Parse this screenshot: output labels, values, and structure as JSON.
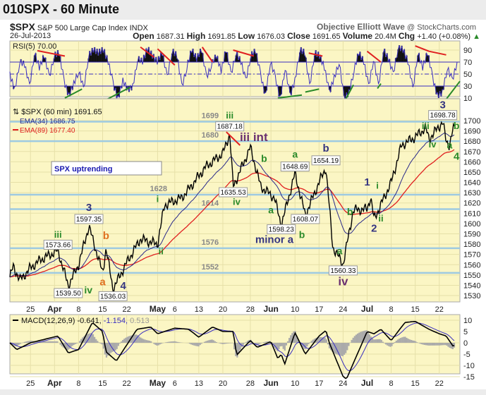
{
  "title": "010SPX - 60 Minute",
  "header": {
    "symbol": "$SPX",
    "name": "S&P 500 Large Cap Index",
    "exchange": "INDX",
    "date": "26-Jul-2013",
    "brand": "Objective Elliott Wave",
    "site": "@ StockCharts.com",
    "open_label": "Open",
    "open": "1687.31",
    "high_label": "High",
    "high": "1691.85",
    "low_label": "Low",
    "low": "1676.03",
    "close_label": "Close",
    "close": "1691.65",
    "volume_label": "Volume",
    "volume": "20.4M",
    "chg_label": "Chg",
    "chg": "+1.40 (+0.08%)",
    "chg_icon": "triangle-up"
  },
  "chart_data": [
    {
      "type": "line",
      "panel": "rsi",
      "legend": "RSI(5) 70.00",
      "ylim": [
        0,
        100
      ],
      "yticks": [
        10,
        30,
        50,
        70,
        90
      ],
      "levels": [
        30,
        50,
        70
      ],
      "color": "#3a2fc0",
      "values": [
        50,
        25,
        70,
        65,
        30,
        85,
        60,
        80,
        45,
        80,
        85,
        40,
        15,
        35,
        55,
        25,
        80,
        90,
        85,
        90,
        70,
        35,
        10,
        40,
        25,
        30,
        75,
        70,
        92,
        80,
        70,
        85,
        45,
        88,
        80,
        30,
        60,
        90,
        75,
        90,
        45,
        65,
        80,
        55,
        90,
        50,
        85,
        70,
        40,
        80,
        88,
        50,
        15,
        70,
        45,
        10,
        60,
        15,
        40,
        90,
        85,
        30,
        85,
        80,
        60,
        20,
        45,
        70,
        10,
        20,
        55,
        85,
        70,
        30,
        75,
        30,
        90,
        75,
        50,
        95,
        90,
        70,
        25,
        85,
        60,
        85,
        45,
        15,
        20,
        60,
        40,
        70
      ],
      "trendlines": [
        {
          "color": "#e02020",
          "from": [
            "2013-03-27",
            89
          ],
          "to": [
            "2013-04-04",
            80
          ]
        },
        {
          "color": "#2a8a2a",
          "from": [
            "2013-04-04",
            10
          ],
          "to": [
            "2013-04-09",
            25
          ]
        },
        {
          "color": "#2a8a2a",
          "from": [
            "2013-04-16",
            7
          ],
          "to": [
            "2013-04-23",
            28
          ]
        },
        {
          "color": "#e02020",
          "from": [
            "2013-04-26",
            95
          ],
          "to": [
            "2013-04-30",
            78
          ]
        },
        {
          "color": "#e02020",
          "from": [
            "2013-05-01",
            92
          ],
          "to": [
            "2013-05-06",
            65
          ]
        },
        {
          "color": "#e02020",
          "from": [
            "2013-05-14",
            95
          ],
          "to": [
            "2013-05-17",
            70
          ]
        },
        {
          "color": "#e02020",
          "from": [
            "2013-05-23",
            90
          ],
          "to": [
            "2013-05-29",
            80
          ]
        },
        {
          "color": "#2a8a2a",
          "from": [
            "2013-06-05",
            10
          ],
          "to": [
            "2013-06-12",
            15
          ]
        },
        {
          "color": "#2a8a2a",
          "from": [
            "2013-06-13",
            20
          ],
          "to": [
            "2013-06-17",
            25
          ]
        },
        {
          "color": "#e02020",
          "from": [
            "2013-06-14",
            85
          ],
          "to": [
            "2013-06-18",
            80
          ]
        },
        {
          "color": "#2a8a2a",
          "from": [
            "2013-06-24",
            0
          ],
          "to": [
            "2013-06-27",
            32
          ]
        },
        {
          "color": "#e02020",
          "from": [
            "2013-07-01",
            88
          ],
          "to": [
            "2013-07-05",
            70
          ]
        },
        {
          "color": "#2a8a2a",
          "from": [
            "2013-07-04",
            26
          ],
          "to": [
            "2013-07-05",
            34
          ]
        },
        {
          "color": "#e02020",
          "from": [
            "2013-07-15",
            97
          ],
          "to": [
            "2013-07-19",
            88
          ]
        },
        {
          "color": "#e02020",
          "from": [
            "2013-07-19",
            88
          ],
          "to": [
            "2013-07-24",
            82
          ]
        },
        {
          "color": "#2a8a2a",
          "from": [
            "2013-07-24",
            8
          ],
          "to": [
            "2013-07-28",
            38
          ]
        }
      ]
    },
    {
      "type": "line",
      "panel": "price",
      "legend": "$SPX (60 min) 1691.65",
      "ema34_label": "EMA(34) 1686.75",
      "ema89_label": "EMA(89) 1677.40",
      "ylim": [
        1522,
        1710
      ],
      "yticks": [
        1530,
        1540,
        1550,
        1560,
        1570,
        1580,
        1590,
        1600,
        1610,
        1620,
        1630,
        1640,
        1650,
        1660,
        1670,
        1680,
        1690,
        1700
      ],
      "colors": {
        "price": "#000000",
        "ema34": "#2a2a8a",
        "ema89": "#e02020",
        "levels": "#9ecae1"
      },
      "xticks": [
        [
          "2013-03-25",
          "25"
        ],
        [
          "2013-04-01",
          "Apr"
        ],
        [
          "2013-04-08",
          "8"
        ],
        [
          "2013-04-15",
          "15"
        ],
        [
          "2013-04-22",
          "22"
        ],
        [
          "2013-05-01",
          "May"
        ],
        [
          "2013-05-06",
          "6"
        ],
        [
          "2013-05-13",
          "13"
        ],
        [
          "2013-05-20",
          "20"
        ],
        [
          "2013-05-28",
          "28"
        ],
        [
          "2013-06-03",
          "Jun"
        ],
        [
          "2013-06-10",
          "10"
        ],
        [
          "2013-06-17",
          "17"
        ],
        [
          "2013-06-24",
          "24"
        ],
        [
          "2013-07-01",
          "Jul"
        ],
        [
          "2013-07-08",
          "8"
        ],
        [
          "2013-07-15",
          "15"
        ],
        [
          "2013-07-22",
          "22"
        ]
      ],
      "x": [
        "2013-03-19",
        "2013-03-20",
        "2013-03-22",
        "2013-03-25",
        "2013-03-28",
        "2013-04-02",
        "2013-04-05",
        "2013-04-08",
        "2013-04-11",
        "2013-04-15",
        "2013-04-16",
        "2013-04-18",
        "2013-04-22",
        "2013-04-26",
        "2013-05-01",
        "2013-05-03",
        "2013-05-08",
        "2013-05-10",
        "2013-05-15",
        "2013-05-20",
        "2013-05-22",
        "2013-05-23",
        "2013-05-28",
        "2013-05-31",
        "2013-06-04",
        "2013-06-06",
        "2013-06-10",
        "2013-06-13",
        "2013-06-17",
        "2013-06-19",
        "2013-06-21",
        "2013-06-24",
        "2013-06-27",
        "2013-07-01",
        "2013-07-02",
        "2013-07-03",
        "2013-07-08",
        "2013-07-11",
        "2013-07-15",
        "2013-07-18",
        "2013-07-19",
        "2013-07-23",
        "2013-07-24",
        "2013-07-25",
        "2013-07-26"
      ],
      "values": [
        1548,
        1558,
        1545,
        1557,
        1565,
        1573.66,
        1539.5,
        1560,
        1597.35,
        1552,
        1576,
        1536.03,
        1562,
        1585,
        1580,
        1618,
        1625,
        1633,
        1655,
        1668,
        1687.18,
        1635.53,
        1674,
        1636,
        1625,
        1598.23,
        1648.69,
        1608.07,
        1640,
        1654.19,
        1577,
        1560.33,
        1613,
        1614,
        1626,
        1604,
        1640,
        1676,
        1684,
        1693,
        1682,
        1698.78,
        1680,
        1676.03,
        1691.65
      ],
      "support_levels": [
        1699,
        1680,
        1628,
        1614,
        1576,
        1552
      ],
      "annotations": [
        {
          "text": "iii",
          "date": "2013-04-02",
          "price": 1582,
          "color": "#2a8a2a",
          "size": 13
        },
        {
          "text": "3",
          "date": "2013-04-11",
          "price": 1606,
          "color": "#343480",
          "size": 15
        },
        {
          "text": "b",
          "date": "2013-04-16",
          "price": 1585,
          "color": "#e07020",
          "size": 15
        },
        {
          "text": "a",
          "date": "2013-04-15",
          "price": 1540,
          "color": "#e07020",
          "size": 15
        },
        {
          "text": "iv",
          "date": "2013-04-09",
          "price": 1532,
          "color": "#2a8a2a",
          "size": 14
        },
        {
          "text": "4",
          "date": "2013-04-21",
          "price": 1528,
          "color": "#343480",
          "size": 15
        },
        {
          "text": "i",
          "date": "2013-05-01",
          "price": 1629,
          "color": "#2a8a2a",
          "size": 13
        },
        {
          "text": "ii",
          "date": "2013-05-02",
          "price": 1570,
          "color": "#2a8a2a",
          "size": 13
        },
        {
          "text": "iii",
          "date": "2013-05-22",
          "price": 1702,
          "color": "#2a8a2a",
          "size": 13
        },
        {
          "text": "iii int",
          "date": "2013-05-29",
          "price": 1680,
          "color": "#6a3070",
          "size": 17
        },
        {
          "text": "iv",
          "date": "2013-05-24",
          "price": 1620,
          "color": "#2a8a2a",
          "size": 13
        },
        {
          "text": "b",
          "date": "2013-06-01",
          "price": 1660,
          "color": "#2a8a2a",
          "size": 14
        },
        {
          "text": "a",
          "date": "2013-06-03",
          "price": 1610,
          "color": "#2a8a2a",
          "size": 14
        },
        {
          "text": "a",
          "date": "2013-06-10",
          "price": 1664,
          "color": "#2a8a2a",
          "size": 14
        },
        {
          "text": "minor a",
          "date": "2013-06-04",
          "price": 1583,
          "color": "#343480",
          "size": 15
        },
        {
          "text": "b",
          "date": "2013-06-12",
          "price": 1586,
          "color": "#2a8a2a",
          "size": 14
        },
        {
          "text": "b",
          "date": "2013-06-19",
          "price": 1670,
          "color": "#343480",
          "size": 15
        },
        {
          "text": "b",
          "date": "2013-06-26",
          "price": 1608,
          "color": "#2a8a2a",
          "size": 14
        },
        {
          "text": "a",
          "date": "2013-06-23",
          "price": 1570,
          "color": "#2a8a2a",
          "size": 14
        },
        {
          "text": "iv",
          "date": "2013-06-24",
          "price": 1540,
          "color": "#6a3070",
          "size": 17
        },
        {
          "text": "1",
          "date": "2013-07-01",
          "price": 1637,
          "color": "#343480",
          "size": 15
        },
        {
          "text": "i",
          "date": "2013-07-04",
          "price": 1634,
          "color": "#2a8a2a",
          "size": 13
        },
        {
          "text": "ii",
          "date": "2013-07-05",
          "price": 1602,
          "color": "#2a8a2a",
          "size": 13
        },
        {
          "text": "2",
          "date": "2013-07-03",
          "price": 1592,
          "color": "#343480",
          "size": 15
        },
        {
          "text": "iii",
          "date": "2013-07-18",
          "price": 1694,
          "color": "#2a8a2a",
          "size": 13
        },
        {
          "text": "iv",
          "date": "2013-07-20",
          "price": 1674,
          "color": "#2a8a2a",
          "size": 13
        },
        {
          "text": "3",
          "date": "2013-07-23",
          "price": 1708,
          "color": "#343480",
          "size": 15
        },
        {
          "text": "b",
          "date": "2013-07-27",
          "price": 1694,
          "color": "#2a8a2a",
          "size": 14
        },
        {
          "text": "a",
          "date": "2013-07-25",
          "price": 1673,
          "color": "#2a8a2a",
          "size": 14
        },
        {
          "text": "4",
          "date": "2013-07-27",
          "price": 1662,
          "color": "#2a8a2a",
          "size": 15
        }
      ],
      "price_callouts": [
        [
          "2013-04-02",
          "1573.66",
          1577
        ],
        [
          "2013-04-05",
          "1539.50",
          1530
        ],
        [
          "2013-04-11",
          "1597.35",
          1602
        ],
        [
          "2013-04-18",
          "1536.03",
          1527
        ],
        [
          "2013-05-22",
          "1687.18",
          1692
        ],
        [
          "2013-05-23",
          "1635.53",
          1628
        ],
        [
          "2013-06-06",
          "1598.23",
          1592
        ],
        [
          "2013-06-10",
          "1648.69",
          1653
        ],
        [
          "2013-06-13",
          "1608.07",
          1602
        ],
        [
          "2013-06-19",
          "1654.19",
          1659
        ],
        [
          "2013-06-24",
          "1560.33",
          1552
        ],
        [
          "2013-07-23",
          "1698.78",
          1703
        ]
      ],
      "textbox": "SPX uptrending",
      "red_line": {
        "from": [
          "2013-05-21",
          1689
        ],
        "to": [
          "2013-05-25",
          1676
        ]
      }
    },
    {
      "type": "line",
      "panel": "macd",
      "legend": "MACD(12,26,9)",
      "macd": "-0.641",
      "signal": "-1.154",
      "histogram": "0.513",
      "ylim": [
        -17,
        12
      ],
      "yticks": [
        10,
        5,
        0,
        -5,
        -10,
        -15
      ],
      "x": [
        "2013-03-19",
        "2013-03-21",
        "2013-03-25",
        "2013-04-02",
        "2013-04-05",
        "2013-04-08",
        "2013-04-12",
        "2013-04-15",
        "2013-04-16",
        "2013-04-19",
        "2013-04-25",
        "2013-04-29",
        "2013-05-01",
        "2013-05-06",
        "2013-05-10",
        "2013-05-13",
        "2013-05-17",
        "2013-05-20",
        "2013-05-23",
        "2013-05-24",
        "2013-05-28",
        "2013-05-30",
        "2013-06-03",
        "2013-06-05",
        "2013-06-06",
        "2013-06-07",
        "2013-06-10",
        "2013-06-13",
        "2013-06-17",
        "2013-06-19",
        "2013-06-20",
        "2013-06-24",
        "2013-06-25",
        "2013-07-01",
        "2013-07-03",
        "2013-07-05",
        "2013-07-08",
        "2013-07-12",
        "2013-07-15",
        "2013-07-19",
        "2013-07-22",
        "2013-07-24",
        "2013-07-26",
        "2013-07-27"
      ],
      "values": [
        0,
        -3,
        0,
        3,
        -4.5,
        -3,
        9,
        5,
        -4,
        -8,
        6,
        7,
        4,
        6.5,
        6,
        2.5,
        7,
        5,
        5,
        -5.5,
        1,
        -2,
        0.5,
        -7,
        -5,
        -9.5,
        4.5,
        -5,
        3,
        5.5,
        0,
        -15,
        -16,
        5,
        4,
        6,
        1,
        9,
        9.5,
        6,
        4,
        3,
        -1.5,
        -0.6
      ]
    }
  ]
}
